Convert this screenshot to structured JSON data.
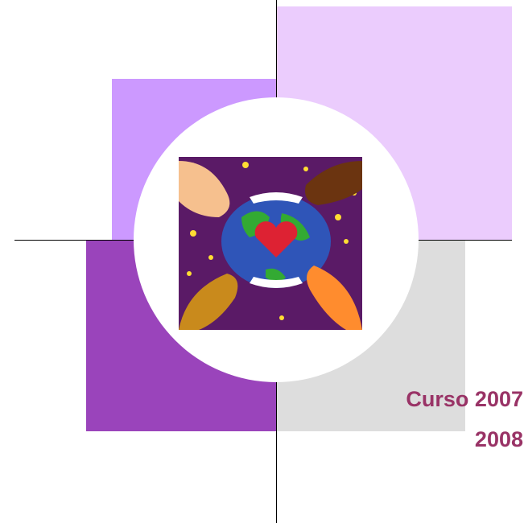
{
  "title": {
    "lines": [
      "Curso 2007",
      "2008"
    ]
  }
}
